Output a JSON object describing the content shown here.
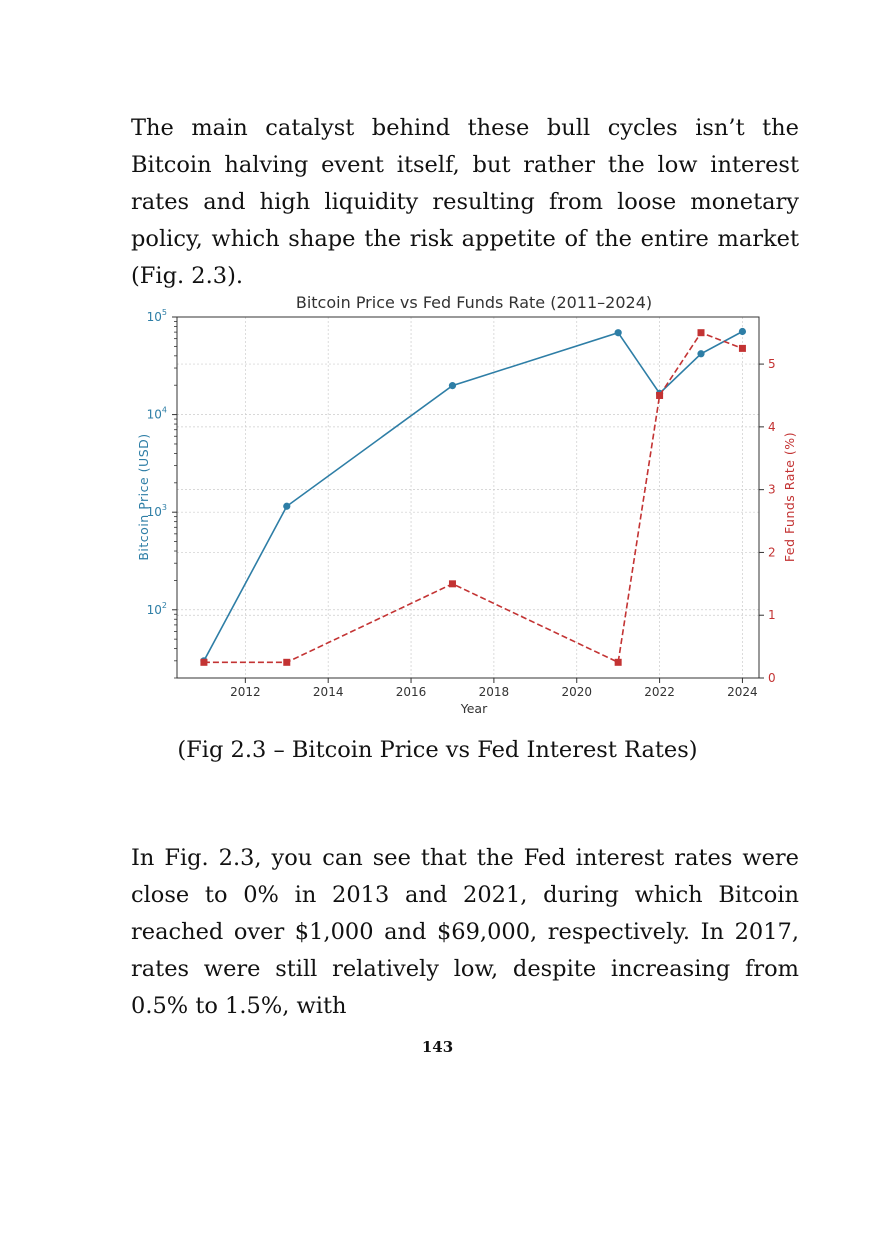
{
  "paragraphs": [
    "The main catalyst behind these bull cycles isn’t the Bitcoin halving event itself, but rather the low interest rates and high liquidity resulting from loose monetary policy, which shape the risk appetite of the entire market (Fig. 2.3).",
    "In Fig. 2.3, you can see that the Fed interest rates were close to 0% in 2013 and 2021, during which Bitcoin reached over $1,000 and $69,000, respectively. In 2017, rates were still relatively low, despite increasing from 0.5% to 1.5%, with"
  ],
  "caption": "(Fig 2.3 – Bitcoin Price vs Fed Interest Rates)",
  "page_number": "143",
  "colors": {
    "price": "#2e7ea6",
    "rate": "#c33333",
    "grid": "#cccccc",
    "axis": "#333333"
  },
  "chart_data": {
    "type": "line",
    "title": "Bitcoin Price vs Fed Funds Rate (2011–2024)",
    "xlabel": "Year",
    "ylabel": "Bitcoin Price (USD)",
    "y2label": "Fed Funds Rate (%)",
    "xlim": [
      2010.35,
      2024.4
    ],
    "ylim": [
      20,
      100000
    ],
    "yscale": "log",
    "y2lim": [
      0,
      5.75
    ],
    "x_ticks": [
      2012,
      2014,
      2016,
      2018,
      2020,
      2022,
      2024
    ],
    "y_ticks": [
      {
        "value": 100,
        "base": "10",
        "exp": "2"
      },
      {
        "value": 1000,
        "base": "10",
        "exp": "3"
      },
      {
        "value": 10000,
        "base": "10",
        "exp": "4"
      },
      {
        "value": 100000,
        "base": "10",
        "exp": "5"
      }
    ],
    "y2_ticks": [
      0,
      1,
      2,
      3,
      4,
      5
    ],
    "grid": true,
    "series": [
      {
        "name": "Bitcoin Price (USD)",
        "axis": "left",
        "style": "solid",
        "marker": "circle",
        "x": [
          2011,
          2013,
          2017,
          2021,
          2022,
          2023,
          2024
        ],
        "values": [
          30,
          1150,
          19800,
          69000,
          16500,
          42000,
          71000
        ]
      },
      {
        "name": "Fed Funds Rate (%)",
        "axis": "right",
        "style": "dashed",
        "marker": "square",
        "x": [
          2011,
          2013,
          2017,
          2021,
          2022,
          2023,
          2024
        ],
        "values": [
          0.25,
          0.25,
          1.5,
          0.25,
          4.5,
          5.5,
          5.25
        ]
      }
    ]
  }
}
